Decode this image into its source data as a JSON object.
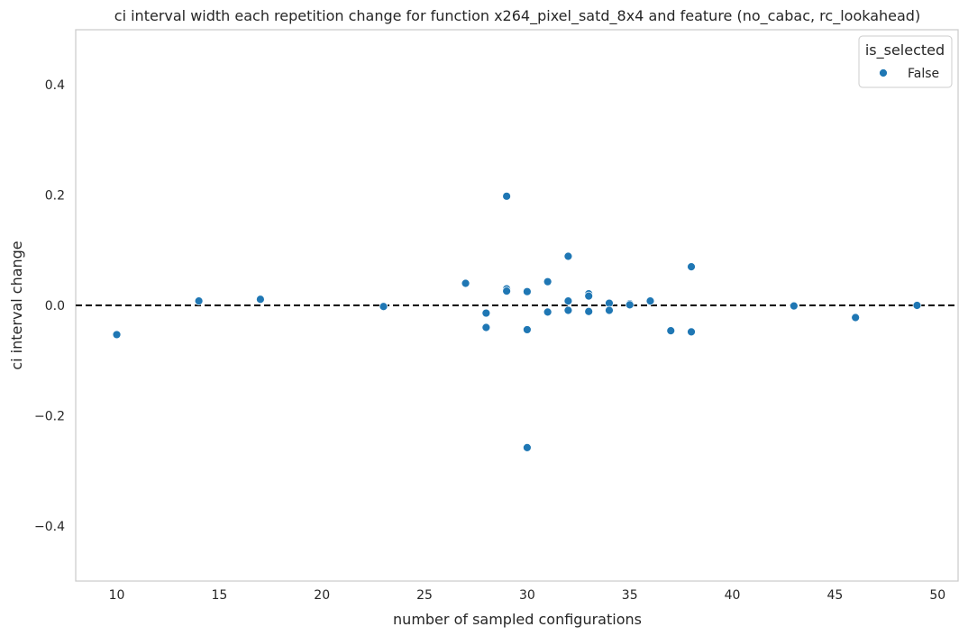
{
  "chart_data": {
    "type": "scatter",
    "title": "ci interval width each repetition change for function x264_pixel_satd_8x4 and feature (no_cabac, rc_lookahead)",
    "xlabel": "number of sampled configurations",
    "ylabel": "ci interval change",
    "xlim": [
      8,
      51
    ],
    "ylim": [
      -0.5,
      0.5
    ],
    "xticks": [
      10,
      15,
      20,
      25,
      30,
      35,
      40,
      45,
      50
    ],
    "yticks": [
      -0.4,
      -0.2,
      0.0,
      0.2,
      0.4
    ],
    "xtick_labels": [
      "10",
      "15",
      "20",
      "25",
      "30",
      "35",
      "40",
      "45",
      "50"
    ],
    "ytick_labels": [
      "−0.4",
      "−0.2",
      "0.0",
      "0.2",
      "0.4"
    ],
    "grid": false,
    "reference_line": {
      "y": 0,
      "style": "dashed",
      "color": "#000000"
    },
    "legend": {
      "title": "is_selected",
      "placement": "top-right",
      "entries": [
        {
          "label": "False",
          "color": "#1f77b4"
        }
      ]
    },
    "series": [
      {
        "name": "False",
        "color": "#1f77b4",
        "points": [
          [
            10,
            -0.053
          ],
          [
            14,
            0.008
          ],
          [
            17,
            0.011
          ],
          [
            23,
            -0.002
          ],
          [
            27,
            0.04
          ],
          [
            28,
            -0.014
          ],
          [
            28,
            -0.04
          ],
          [
            29,
            0.198
          ],
          [
            29,
            0.03
          ],
          [
            29,
            0.026
          ],
          [
            30,
            0.025
          ],
          [
            30,
            -0.044
          ],
          [
            30,
            -0.258
          ],
          [
            31,
            0.043
          ],
          [
            31,
            -0.012
          ],
          [
            32,
            0.089
          ],
          [
            32,
            0.008
          ],
          [
            32,
            -0.009
          ],
          [
            33,
            0.021
          ],
          [
            33,
            0.017
          ],
          [
            33,
            -0.011
          ],
          [
            34,
            0.004
          ],
          [
            34,
            -0.009
          ],
          [
            35,
            0.003
          ],
          [
            35,
            0.001
          ],
          [
            36,
            0.008
          ],
          [
            37,
            -0.046
          ],
          [
            38,
            0.07
          ],
          [
            38,
            -0.048
          ],
          [
            43,
            -0.001
          ],
          [
            46,
            -0.022
          ],
          [
            49,
            0.0
          ]
        ]
      }
    ]
  }
}
